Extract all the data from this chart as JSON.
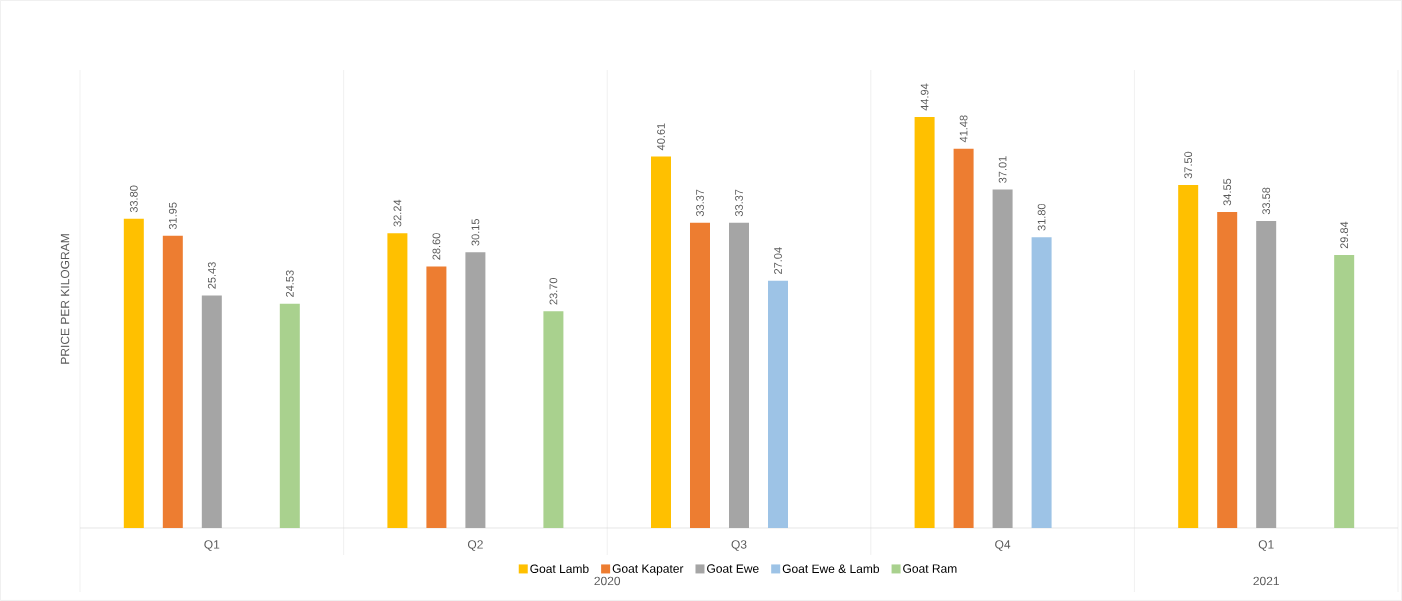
{
  "chart_data": {
    "type": "bar",
    "ylabel": "PRICE PER KILOGRAM",
    "categories": [
      "Q1",
      "Q2",
      "Q3",
      "Q4",
      "Q1"
    ],
    "annotations": [
      "2020",
      "2021"
    ],
    "legend": "bottom",
    "series": [
      {
        "name": "Goat Lamb",
        "color": "#ffc000",
        "values": [
          33.8,
          32.24,
          40.61,
          44.94,
          37.5
        ],
        "value_labels": [
          "33.80",
          "32.24",
          "40.61",
          "44.94",
          "37.50"
        ]
      },
      {
        "name": "Goat Kapater",
        "color": "#ed7d31",
        "values": [
          31.95,
          28.6,
          33.37,
          41.48,
          34.55
        ],
        "value_labels": [
          "31.95",
          "28.60",
          "33.37",
          "41.48",
          "34.55"
        ]
      },
      {
        "name": "Goat Ewe",
        "color": "#a5a5a5",
        "values": [
          25.43,
          30.15,
          33.37,
          37.01,
          33.58
        ],
        "value_labels": [
          "25.43",
          "30.15",
          "33.37",
          "37.01",
          "33.58"
        ]
      },
      {
        "name": "Goat Ewe & Lamb",
        "color": "#9dc3e6",
        "values": [
          null,
          null,
          27.04,
          31.8,
          null
        ],
        "value_labels": [
          null,
          null,
          "27.04",
          "31.80",
          null
        ]
      },
      {
        "name": "Goat Ram",
        "color": "#a9d18e",
        "values": [
          24.53,
          23.7,
          null,
          null,
          29.84
        ],
        "value_labels": [
          "24.53",
          "23.70",
          null,
          null,
          "29.84"
        ]
      }
    ]
  }
}
